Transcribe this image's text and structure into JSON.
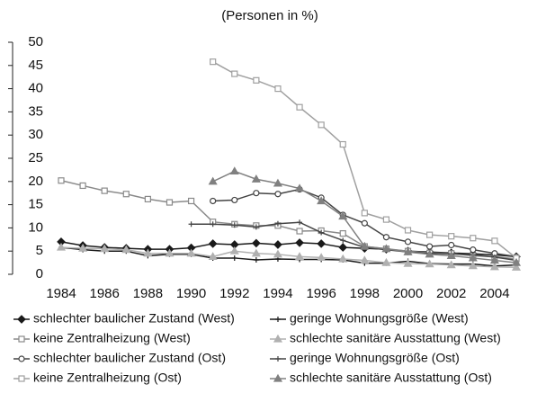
{
  "chart_data": {
    "type": "line",
    "title": "(Personen in %)",
    "x": [
      1984,
      1985,
      1986,
      1987,
      1988,
      1989,
      1990,
      1991,
      1992,
      1993,
      1994,
      1995,
      1996,
      1997,
      1998,
      1999,
      2000,
      2001,
      2002,
      2003,
      2004,
      2005
    ],
    "xlim": [
      1984,
      2005
    ],
    "xticks": [
      1984,
      1986,
      1988,
      1990,
      1992,
      1994,
      1996,
      1998,
      2000,
      2002,
      2004
    ],
    "ylim": [
      0,
      50
    ],
    "yticks": [
      0,
      5,
      10,
      15,
      20,
      25,
      30,
      35,
      40,
      45,
      50
    ],
    "series": [
      {
        "name": "schlechter baulicher Zustand (West)",
        "color": "#1a1a1a",
        "marker": "diamond",
        "values": [
          7,
          6.2,
          5.8,
          5.6,
          5.4,
          5.4,
          5.7,
          6.6,
          6.4,
          6.7,
          6.4,
          6.8,
          6.6,
          5.8,
          5.6,
          5.4,
          5,
          4.8,
          4.6,
          4.4,
          4.2,
          3.8
        ]
      },
      {
        "name": "geringe Wohnungsgröße (West)",
        "color": "#1a1a1a",
        "marker": "plus",
        "values": [
          5.8,
          5.3,
          5,
          5,
          4,
          4.3,
          4.3,
          3.5,
          3.5,
          3.1,
          3.3,
          3.2,
          3.2,
          3.1,
          2.4,
          2.4,
          2.8,
          2.3,
          2.2,
          2.2,
          1.8,
          2
        ]
      },
      {
        "name": "keine Zentralheizung (West)",
        "color": "#8a8a8a",
        "marker": "square",
        "values": [
          20.2,
          19.1,
          18,
          17.3,
          16.2,
          15.5,
          15.8,
          11.3,
          10.8,
          10.5,
          10.5,
          9.3,
          9.4,
          8.8,
          6,
          5.5,
          5,
          4.6,
          4.5,
          4,
          3.8,
          3.3
        ]
      },
      {
        "name": "schlechte sanitäre Ausstattung (West)",
        "color": "#b0b0b0",
        "marker": "triangle",
        "values": [
          5.8,
          5.6,
          5.5,
          5.3,
          4.5,
          4.5,
          4.5,
          3.8,
          5,
          4.5,
          4.3,
          3.8,
          3.6,
          3.3,
          3,
          2.5,
          2.3,
          2.2,
          2,
          1.8,
          1.6,
          1.5
        ]
      },
      {
        "name": "schlechter baulicher Zustand (Ost)",
        "color": "#444444",
        "marker": "circle",
        "values": [
          null,
          null,
          null,
          null,
          null,
          null,
          null,
          15.8,
          16,
          17.5,
          17.3,
          18.3,
          16.5,
          12.8,
          11,
          8,
          7,
          6,
          6.3,
          5.3,
          4.5,
          3.8
        ]
      },
      {
        "name": "geringe Wohnungsgröße (Ost)",
        "color": "#444444",
        "marker": "plus",
        "values": [
          null,
          null,
          null,
          null,
          null,
          null,
          10.8,
          10.8,
          10.6,
          10.2,
          10.9,
          11.2,
          9,
          7.3,
          5.8,
          5.3,
          4.8,
          4.5,
          4.4,
          4.2,
          3.7,
          3
        ]
      },
      {
        "name": "keine Zentralheizung (Ost)",
        "color": "#a0a0a0",
        "marker": "square",
        "values": [
          null,
          null,
          null,
          null,
          null,
          null,
          null,
          45.8,
          43.2,
          41.8,
          40,
          36,
          32.2,
          28,
          13.2,
          11.8,
          9.5,
          8.5,
          8.2,
          7.8,
          7.2,
          3.5
        ]
      },
      {
        "name": "schlechte sanitäre Ausstattung (Ost)",
        "color": "#808080",
        "marker": "triangle",
        "values": [
          null,
          null,
          null,
          null,
          null,
          null,
          null,
          20,
          22.2,
          20.5,
          19.6,
          18.5,
          15.8,
          12.5,
          6,
          5.5,
          4.8,
          4.3,
          4,
          3.5,
          3,
          2.5
        ]
      }
    ]
  }
}
